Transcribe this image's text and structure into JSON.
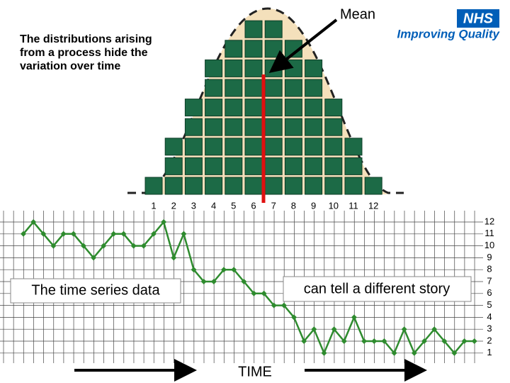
{
  "slide": {
    "logo": "NHS",
    "tagline": "Improving Quality",
    "caption": [
      "The distributions arising",
      "from a process hide the",
      "variation over time"
    ]
  },
  "chart_data": [
    {
      "type": "bar",
      "annotation": "Mean",
      "color": "#1c6a46",
      "categories": [
        "1",
        "2",
        "3",
        "4",
        "5",
        "6",
        "7",
        "8",
        "9",
        "10",
        "11",
        "12"
      ],
      "values": [
        1,
        3,
        5,
        7,
        8,
        9,
        9,
        8,
        7,
        5,
        3,
        1
      ]
    },
    {
      "type": "line",
      "color": "#2e8b2e",
      "grid": true,
      "x_label": "TIME",
      "annotations": [
        "The time series data",
        "can tell a different story"
      ],
      "values": [
        11,
        12,
        11,
        10,
        11,
        11,
        10,
        9,
        10,
        11,
        11,
        10,
        10,
        11,
        12,
        9,
        11,
        8,
        7,
        7,
        8,
        8,
        7,
        6,
        6,
        5,
        5,
        4,
        2,
        3,
        1,
        3,
        2,
        4,
        2,
        2,
        2,
        1,
        3,
        1,
        2,
        3,
        2,
        1,
        2,
        2
      ],
      "ylim": [
        0,
        13
      ],
      "yticks": [
        1,
        2,
        3,
        4,
        5,
        6,
        7,
        8,
        9,
        10,
        11,
        12
      ]
    }
  ]
}
